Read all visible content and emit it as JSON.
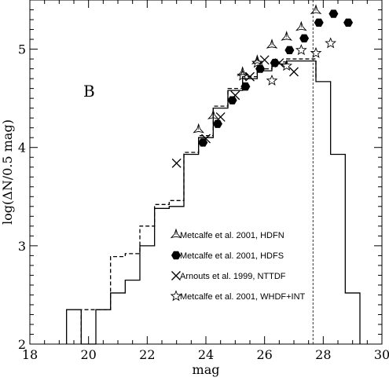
{
  "chart_data": {
    "type": "line",
    "xlabel": "mag",
    "ylabel": "log(ΔN/0.5 mag)",
    "xlim": [
      18,
      30
    ],
    "ylim": [
      2,
      5.5
    ],
    "x_ticks": [
      18,
      20,
      22,
      24,
      26,
      28,
      30
    ],
    "y_ticks": [
      2,
      3,
      4,
      5
    ],
    "panel_label": "B",
    "histograms": [
      {
        "style": "solid",
        "edges": [
          19.25,
          19.75,
          20.25,
          20.75,
          21.25,
          21.75,
          22.25,
          22.75,
          23.25,
          23.75,
          24.25,
          24.75,
          25.25,
          25.75,
          26.25,
          26.75,
          27.25,
          27.75,
          28.25,
          28.75,
          29.25
        ],
        "values": [
          2.35,
          2.0,
          2.35,
          2.52,
          2.65,
          3.0,
          3.38,
          3.4,
          3.93,
          4.1,
          4.4,
          4.58,
          4.7,
          4.78,
          4.85,
          4.88,
          4.88,
          4.67,
          3.93,
          2.52
        ]
      },
      {
        "style": "dashed",
        "edges": [
          19.75,
          20.25,
          20.75,
          21.25,
          21.75,
          22.25,
          22.75,
          23.25,
          23.75,
          24.25,
          24.75,
          25.25,
          25.75,
          26.25,
          26.75,
          27.25,
          27.75
        ],
        "values": [
          2.35,
          2.35,
          2.89,
          2.92,
          3.2,
          3.42,
          3.46,
          3.95,
          4.12,
          4.42,
          4.6,
          4.72,
          4.8,
          4.87,
          4.9,
          4.9,
          4.7
        ]
      }
    ],
    "vline_x": 27.65,
    "series": [
      {
        "name": "Metcalfe et al. 2001, HDFN",
        "marker": "tri-star",
        "x": [
          23.75,
          24.25,
          25.25,
          25.75,
          26.25,
          26.75,
          27.25,
          27.75
        ],
        "y": [
          4.18,
          4.32,
          4.76,
          4.88,
          5.04,
          5.12,
          5.22,
          5.39
        ]
      },
      {
        "name": "Metcalfe et al. 2001, HDFS",
        "marker": "hexagon",
        "x": [
          23.9,
          24.4,
          24.9,
          25.35,
          25.85,
          26.35,
          26.85,
          27.35,
          27.85,
          28.35,
          28.85
        ],
        "y": [
          4.05,
          4.24,
          4.48,
          4.62,
          4.8,
          4.86,
          4.99,
          5.11,
          5.27,
          5.36,
          5.27
        ]
      },
      {
        "name": "Arnouts et al. 1999, NTTDF",
        "marker": "cross",
        "x": [
          23.0,
          24.0,
          24.5,
          25.0,
          25.5,
          26.0,
          26.5,
          27.0
        ],
        "y": [
          3.84,
          4.09,
          4.31,
          4.53,
          4.72,
          4.89,
          4.86,
          4.77
        ]
      },
      {
        "name": "Metcalfe et al. 2001, WHDF+INT",
        "marker": "star",
        "x": [
          25.25,
          25.75,
          26.25,
          26.75,
          27.25,
          27.75,
          28.25
        ],
        "y": [
          4.73,
          4.86,
          4.68,
          4.83,
          4.99,
          4.96,
          5.06
        ]
      }
    ]
  }
}
